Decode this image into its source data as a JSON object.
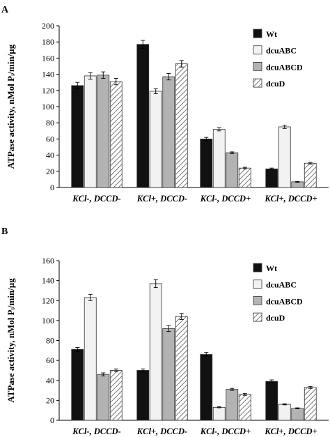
{
  "chart_data": [
    {
      "type": "bar",
      "panel": "A",
      "ylabel": "ATPase activity, nMol Pᵢ/min/µg",
      "ylim": [
        0,
        200
      ],
      "yticks": [
        0,
        20,
        40,
        60,
        80,
        100,
        120,
        140,
        160,
        180,
        200
      ],
      "categories": [
        "KCl-, DCCD-",
        "KCl+, DCCD-",
        "KCl-, DCCD+",
        "KCl+, DCCD+"
      ],
      "series": [
        {
          "name": "Wt",
          "values": [
            126,
            177,
            60,
            23
          ],
          "errors": [
            4,
            5,
            2,
            1
          ],
          "fill": "#111111"
        },
        {
          "name": "dcuABC",
          "values": [
            138,
            119,
            72,
            75
          ],
          "errors": [
            4,
            3,
            2,
            2
          ],
          "fill": "#f2f2f2"
        },
        {
          "name": "dcuABCD",
          "values": [
            139,
            137,
            43,
            7
          ],
          "errors": [
            4,
            4,
            1,
            0.5
          ],
          "fill": "#b3b3b3"
        },
        {
          "name": "dcuD",
          "values": [
            131,
            153,
            24,
            30
          ],
          "errors": [
            4,
            4,
            1,
            1
          ],
          "fill": "hatch"
        }
      ],
      "legend": "right",
      "grid": false
    },
    {
      "type": "bar",
      "panel": "B",
      "ylabel": "ATPase activity, nMol Pᵢ/min/µg",
      "ylim": [
        0,
        160
      ],
      "yticks": [
        0,
        20,
        40,
        60,
        80,
        100,
        120,
        140,
        160
      ],
      "categories": [
        "KCl-, DCCD-",
        "KCl+, DCCD-",
        "KCl-, DCCD+",
        "KCl+, DCCD+"
      ],
      "series": [
        {
          "name": "Wt",
          "values": [
            71,
            50,
            66,
            39
          ],
          "errors": [
            2,
            1.5,
            2,
            1.5
          ],
          "fill": "#111111"
        },
        {
          "name": "dcuABC",
          "values": [
            123,
            137,
            13,
            16
          ],
          "errors": [
            3,
            4,
            0.5,
            0.5
          ],
          "fill": "#f2f2f2"
        },
        {
          "name": "dcuABCD",
          "values": [
            46,
            92,
            31,
            12
          ],
          "errors": [
            1.5,
            3,
            1,
            0.5
          ],
          "fill": "#b3b3b3"
        },
        {
          "name": "dcuD",
          "values": [
            50,
            104,
            26,
            33
          ],
          "errors": [
            1.5,
            3,
            1,
            1
          ],
          "fill": "hatch"
        }
      ],
      "legend": "right",
      "grid": false
    }
  ]
}
